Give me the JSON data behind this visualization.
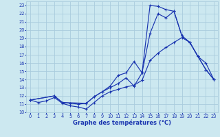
{
  "title": "Graphe des températures (°C)",
  "background_color": "#cce8f0",
  "grid_color": "#aaccdd",
  "line_color": "#1a35b0",
  "xlim": [
    -0.5,
    23.5
  ],
  "ylim": [
    10,
    23.5
  ],
  "xticks": [
    0,
    1,
    2,
    3,
    4,
    5,
    6,
    7,
    8,
    9,
    10,
    11,
    12,
    13,
    14,
    15,
    16,
    17,
    18,
    19,
    20,
    21,
    22,
    23
  ],
  "yticks": [
    10,
    11,
    12,
    13,
    14,
    15,
    16,
    17,
    18,
    19,
    20,
    21,
    22,
    23
  ],
  "line1_x": [
    0,
    1,
    2,
    3,
    4,
    5,
    6,
    7,
    8,
    9,
    10,
    11,
    12,
    13,
    14,
    15,
    16,
    17,
    18,
    19,
    20,
    21,
    22,
    23
  ],
  "line1_y": [
    11.5,
    11.2,
    11.4,
    11.8,
    11.1,
    10.8,
    10.65,
    10.4,
    11.2,
    12.0,
    12.5,
    12.8,
    13.1,
    13.3,
    13.9,
    16.3,
    17.2,
    17.9,
    18.5,
    19.1,
    18.5,
    16.8,
    15.2,
    14.0
  ],
  "line2_x": [
    0,
    3,
    4,
    5,
    6,
    7,
    8,
    9,
    10,
    11,
    12,
    13,
    14,
    15,
    16,
    17,
    18,
    19,
    20,
    22,
    23
  ],
  "line2_y": [
    11.5,
    12.0,
    11.2,
    11.1,
    11.0,
    11.1,
    11.9,
    12.5,
    13.0,
    13.5,
    14.2,
    13.2,
    14.8,
    19.6,
    22.0,
    21.5,
    22.3,
    19.3,
    18.5,
    15.2,
    14.0
  ],
  "line3_x": [
    0,
    3,
    4,
    7,
    8,
    9,
    10,
    11,
    12,
    13,
    14,
    15,
    16,
    17,
    18,
    19,
    20,
    21,
    22,
    23
  ],
  "line3_y": [
    11.5,
    12.0,
    11.2,
    11.1,
    11.9,
    12.5,
    13.2,
    14.5,
    14.8,
    16.2,
    14.8,
    23.0,
    22.9,
    22.5,
    22.3,
    19.3,
    18.5,
    16.8,
    16.0,
    14.0
  ]
}
